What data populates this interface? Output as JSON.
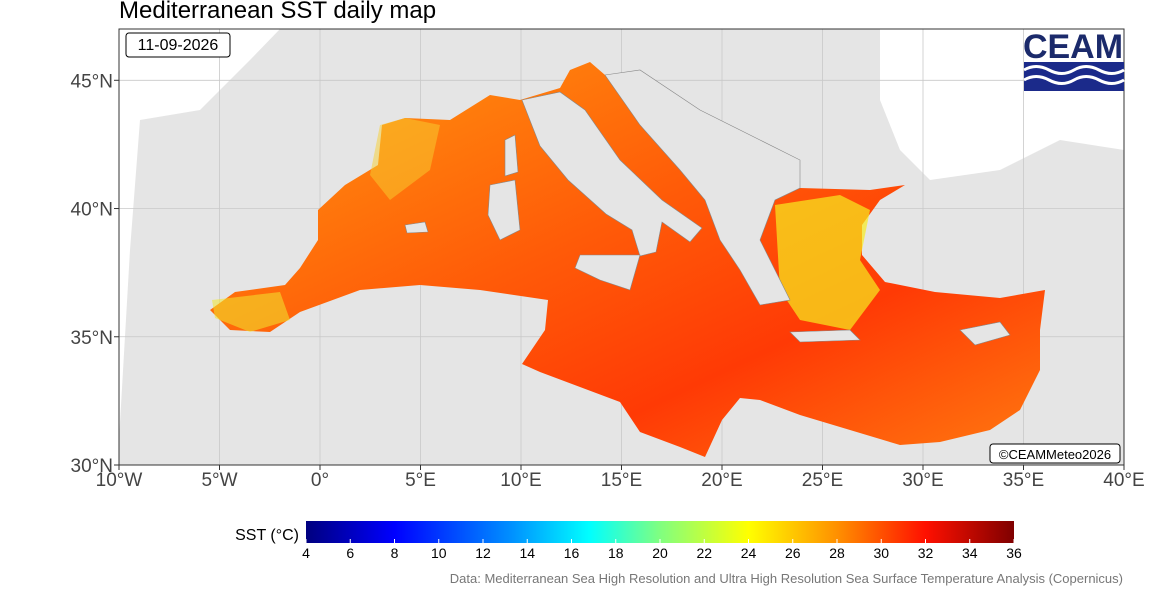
{
  "header": {
    "title": "Mediterranean SST daily map",
    "date": "11-09-2026",
    "logo": "CEAM"
  },
  "map": {
    "xlim": [
      -10,
      40
    ],
    "ylim": [
      30,
      47
    ],
    "xticks": [
      {
        "value": -10,
        "label": "10°W"
      },
      {
        "value": -5,
        "label": "5°W"
      },
      {
        "value": 0,
        "label": "0°"
      },
      {
        "value": 5,
        "label": "5°E"
      },
      {
        "value": 10,
        "label": "10°E"
      },
      {
        "value": 15,
        "label": "15°E"
      },
      {
        "value": 20,
        "label": "20°E"
      },
      {
        "value": 25,
        "label": "25°E"
      },
      {
        "value": 30,
        "label": "30°E"
      },
      {
        "value": 35,
        "label": "35°E"
      },
      {
        "value": 40,
        "label": "40°E"
      }
    ],
    "yticks": [
      {
        "value": 30,
        "label": "30°N"
      },
      {
        "value": 35,
        "label": "35°N"
      },
      {
        "value": 40,
        "label": "40°N"
      },
      {
        "value": 45,
        "label": "45°N"
      }
    ],
    "credit": "©CEAMMeteo2026"
  },
  "colorbar": {
    "title": "SST (°C)",
    "lim": [
      4,
      36
    ],
    "ticks": [
      4,
      6,
      8,
      10,
      12,
      14,
      16,
      18,
      20,
      22,
      24,
      26,
      28,
      30,
      32,
      34,
      36
    ]
  },
  "footer": {
    "source": "Data: Mediterranean Sea High Resolution and Ultra High Resolution Sea Surface Temperature Analysis (Copernicus)"
  }
}
